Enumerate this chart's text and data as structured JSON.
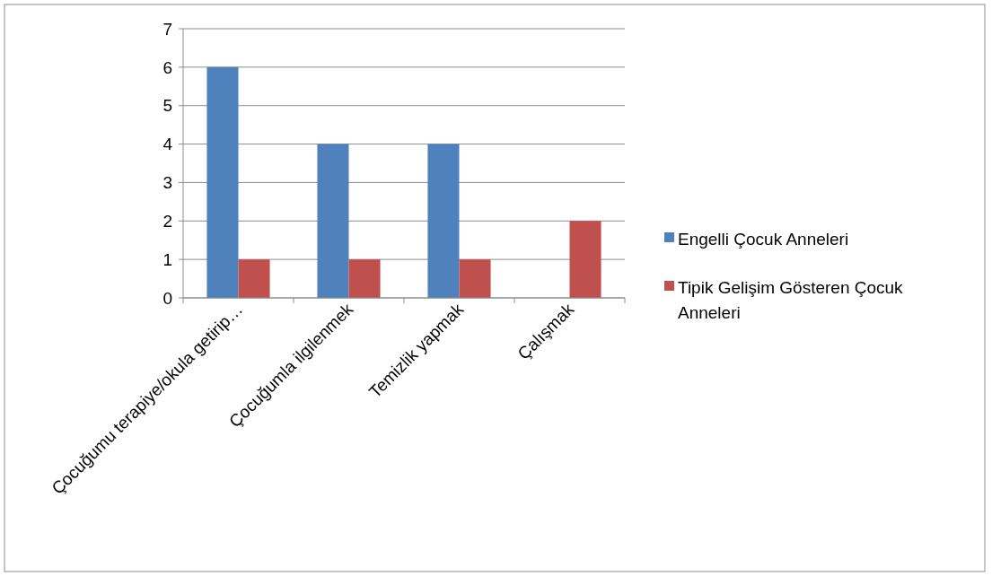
{
  "chart_data": {
    "type": "bar",
    "categories": [
      "Çocuğumu terapiye/okula getirip…",
      "Çocuğumla ilgilenmek",
      "Temizlik yapmak",
      "Çalışmak"
    ],
    "series": [
      {
        "name": "Engelli Çocuk Anneleri",
        "color": "#4f81bd",
        "values": [
          6,
          4,
          4,
          0
        ]
      },
      {
        "name": "Tipik Gelişim Gösteren Çocuk Anneleri",
        "color": "#c0504d",
        "values": [
          1,
          1,
          1,
          2
        ]
      }
    ],
    "ylim": [
      0,
      7
    ],
    "yticks": [
      0,
      1,
      2,
      3,
      4,
      5,
      6,
      7
    ],
    "grid": "y",
    "legend": "right"
  }
}
